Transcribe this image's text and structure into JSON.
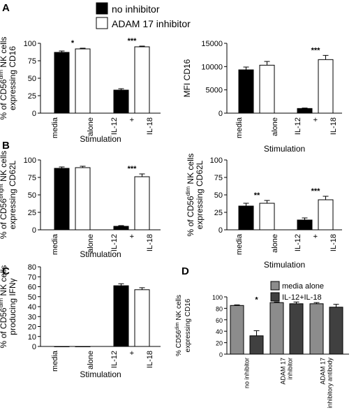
{
  "legend_main": {
    "items": [
      {
        "label": "no inhibitor",
        "color": "#000000"
      },
      {
        "label": "ADAM 17 inhibitor",
        "color": "#ffffff"
      }
    ]
  },
  "legend_d": {
    "items": [
      {
        "label": "media alone",
        "color": "#8c8c8c"
      },
      {
        "label": "IL-12+IL-18",
        "color": "#404040"
      }
    ]
  },
  "chart_data": [
    {
      "panel": "A",
      "type": "bar",
      "ylabel_lines": [
        "% of CD56^dim NK cells",
        "expressing CD16"
      ],
      "xlabel": "Stimulation",
      "ylim": [
        0,
        100
      ],
      "yticks": [
        0,
        25,
        50,
        75,
        100
      ],
      "categories": [
        [
          "media",
          "alone"
        ],
        [
          "IL-12",
          "+",
          "IL-18"
        ]
      ],
      "series": [
        {
          "name": "no inhibitor",
          "color": "#000000",
          "values": [
            87,
            33
          ],
          "errors": [
            2,
            2
          ]
        },
        {
          "name": "ADAM 17 inhibitor",
          "color": "#ffffff",
          "values": [
            92,
            95
          ],
          "errors": [
            1,
            1
          ]
        }
      ],
      "significance": [
        "*",
        "***"
      ]
    },
    {
      "panel": "A2",
      "type": "bar",
      "ylabel_lines": [
        "MFI CD16"
      ],
      "xlabel": "Stimulation",
      "ylim": [
        0,
        15000
      ],
      "yticks": [
        0,
        5000,
        10000,
        15000
      ],
      "categories": [
        [
          "media",
          "alone"
        ],
        [
          "IL-12",
          "+",
          "IL-18"
        ]
      ],
      "series": [
        {
          "name": "no inhibitor",
          "color": "#000000",
          "values": [
            9300,
            1000
          ],
          "errors": [
            600,
            100
          ]
        },
        {
          "name": "ADAM 17 inhibitor",
          "color": "#ffffff",
          "values": [
            10300,
            11500
          ],
          "errors": [
            800,
            900
          ]
        }
      ],
      "significance": [
        "",
        "***"
      ]
    },
    {
      "panel": "B",
      "type": "bar",
      "ylabel_lines": [
        "% of CD56^bright NK cells",
        "expressing CD62L"
      ],
      "xlabel": "Stimulation",
      "ylim": [
        0,
        100
      ],
      "yticks": [
        0,
        25,
        50,
        75,
        100
      ],
      "categories": [
        [
          "media",
          "alone"
        ],
        [
          "IL-12",
          "+",
          "IL-18"
        ]
      ],
      "series": [
        {
          "name": "no inhibitor",
          "color": "#000000",
          "values": [
            88,
            5
          ],
          "errors": [
            2,
            1
          ]
        },
        {
          "name": "ADAM 17 inhibitor",
          "color": "#ffffff",
          "values": [
            89,
            76
          ],
          "errors": [
            2,
            4
          ]
        }
      ],
      "significance": [
        "",
        "***"
      ]
    },
    {
      "panel": "B2",
      "type": "bar",
      "ylabel_lines": [
        "% of CD56^dim NK cells",
        "expressing CD62L"
      ],
      "xlabel": "Stimulation",
      "ylim": [
        0,
        100
      ],
      "yticks": [
        0,
        25,
        50,
        75,
        100
      ],
      "categories": [
        [
          "media",
          "alone"
        ],
        [
          "IL-12",
          "+",
          "IL-18"
        ]
      ],
      "series": [
        {
          "name": "no inhibitor",
          "color": "#000000",
          "values": [
            34,
            14
          ],
          "errors": [
            4,
            3
          ]
        },
        {
          "name": "ADAM 17 inhibitor",
          "color": "#ffffff",
          "values": [
            38,
            43
          ],
          "errors": [
            4,
            5
          ]
        }
      ],
      "significance": [
        "**",
        "***"
      ]
    },
    {
      "panel": "C",
      "type": "bar",
      "ylabel_lines": [
        "% of CD56^dim NK cells",
        "producing IFNγ"
      ],
      "xlabel": "Stimulation",
      "ylim": [
        0,
        80
      ],
      "yticks": [
        0,
        10,
        20,
        30,
        40,
        50,
        60,
        70,
        80
      ],
      "categories": [
        [
          "media",
          "alone"
        ],
        [
          "IL-12",
          "+",
          "IL-18"
        ]
      ],
      "series": [
        {
          "name": "no inhibitor",
          "color": "#000000",
          "values": [
            0,
            61
          ],
          "errors": [
            0,
            2
          ]
        },
        {
          "name": "ADAM 17 inhibitor",
          "color": "#ffffff",
          "values": [
            0,
            57
          ],
          "errors": [
            0,
            2
          ]
        }
      ],
      "significance": [
        "",
        ""
      ]
    },
    {
      "panel": "D",
      "type": "bar",
      "ylabel_lines": [
        "% CD56^dim NK cells",
        "expressing CD16"
      ],
      "xlabel": "",
      "ylim": [
        0,
        100
      ],
      "yticks": [
        0,
        20,
        40,
        60,
        80,
        100
      ],
      "categories": [
        [
          "no inhibitor"
        ],
        [
          "ADAM 17",
          "inhibitor"
        ],
        [
          "ADAM 17",
          "inhibitory antibody"
        ]
      ],
      "series": [
        {
          "name": "media alone",
          "color": "#8c8c8c",
          "values": [
            85,
            90,
            88
          ],
          "errors": [
            1,
            1,
            2
          ]
        },
        {
          "name": "IL-12+IL-18",
          "color": "#404040",
          "values": [
            32,
            88,
            82
          ],
          "errors": [
            9,
            3,
            5
          ]
        }
      ],
      "significance": [
        "*",
        "",
        ""
      ]
    }
  ]
}
